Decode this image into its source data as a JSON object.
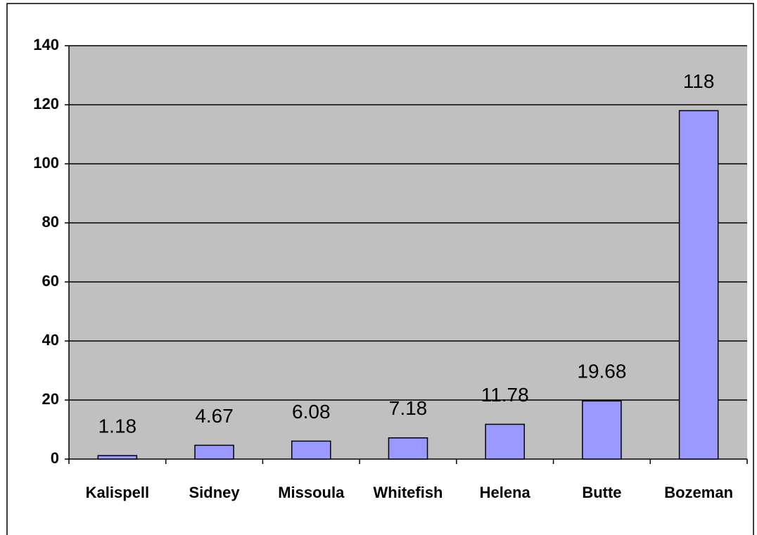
{
  "chart_data": {
    "type": "bar",
    "categories": [
      "Kalispell",
      "Sidney",
      "Missoula",
      "Whitefish",
      "Helena",
      "Butte",
      "Bozeman"
    ],
    "values": [
      1.18,
      4.67,
      6.08,
      7.18,
      11.78,
      19.68,
      118
    ],
    "color": "#9999ff",
    "ylim": [
      0,
      140
    ],
    "yticks": [
      0,
      20,
      40,
      60,
      80,
      100,
      120,
      140
    ],
    "grid": true
  }
}
